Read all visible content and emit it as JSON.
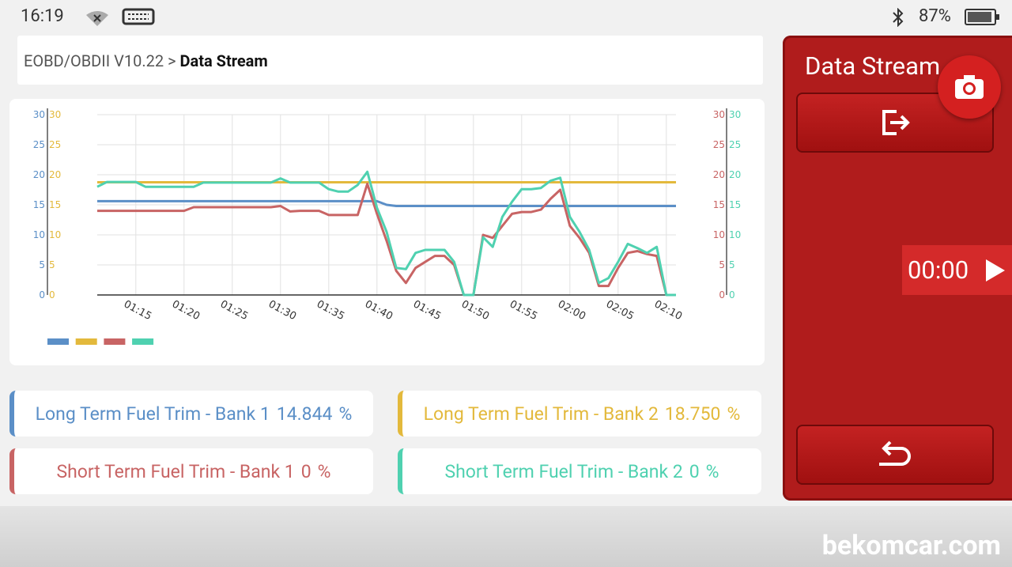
{
  "status_bar": {
    "time": "16:19",
    "battery": "87%"
  },
  "breadcrumb": {
    "path": "EOBD/OBDII V10.22 >",
    "current": "Data Stream"
  },
  "chart_data": {
    "type": "line",
    "x": [
      71,
      72,
      73,
      74,
      75,
      76,
      77,
      78,
      79,
      80,
      81,
      82,
      83,
      84,
      85,
      86,
      87,
      88,
      89,
      90,
      91,
      92,
      93,
      94,
      95,
      96,
      97,
      98,
      99,
      100,
      101,
      102,
      103,
      104,
      105,
      106,
      107,
      108,
      109,
      110,
      111,
      112,
      113,
      114,
      115,
      116,
      117,
      118,
      119,
      120,
      121,
      122,
      123,
      124,
      125,
      126,
      127,
      128,
      129,
      130,
      131
    ],
    "xlim": [
      71,
      131
    ],
    "xticks": [
      {
        "value": 75,
        "label": "01:15"
      },
      {
        "value": 80,
        "label": "01:20"
      },
      {
        "value": 85,
        "label": "01:25"
      },
      {
        "value": 90,
        "label": "01:30"
      },
      {
        "value": 95,
        "label": "01:35"
      },
      {
        "value": 100,
        "label": "01:40"
      },
      {
        "value": 105,
        "label": "01:45"
      },
      {
        "value": 110,
        "label": "01:50"
      },
      {
        "value": 115,
        "label": "01:55"
      },
      {
        "value": 120,
        "label": "02:00"
      },
      {
        "value": 125,
        "label": "02:05"
      },
      {
        "value": 130,
        "label": "02:10"
      }
    ],
    "ylim": [
      0,
      30
    ],
    "yticks": [
      0,
      5,
      10,
      15,
      20,
      25,
      30
    ],
    "grid": true,
    "series": [
      {
        "color": "#5b8fc7",
        "values": [
          15.6,
          15.6,
          15.6,
          15.6,
          15.6,
          15.6,
          15.6,
          15.6,
          15.6,
          15.6,
          15.6,
          15.6,
          15.6,
          15.6,
          15.6,
          15.6,
          15.6,
          15.6,
          15.6,
          15.6,
          15.6,
          15.6,
          15.6,
          15.6,
          15.6,
          15.6,
          15.6,
          15.6,
          15.6,
          15.6,
          15.0,
          14.8,
          14.8,
          14.8,
          14.8,
          14.8,
          14.8,
          14.8,
          14.8,
          14.8,
          14.8,
          14.8,
          14.8,
          14.8,
          14.8,
          14.8,
          14.8,
          14.8,
          14.8,
          14.8,
          14.8,
          14.8,
          14.8,
          14.8,
          14.8,
          14.8,
          14.8,
          14.8,
          14.8,
          14.8,
          14.8
        ]
      },
      {
        "color": "#e3b93c",
        "values": [
          18.75,
          18.75,
          18.75,
          18.75,
          18.75,
          18.75,
          18.75,
          18.75,
          18.75,
          18.75,
          18.75,
          18.75,
          18.75,
          18.75,
          18.75,
          18.75,
          18.75,
          18.75,
          18.75,
          18.75,
          18.75,
          18.75,
          18.75,
          18.75,
          18.75,
          18.75,
          18.75,
          18.75,
          18.75,
          18.75,
          18.75,
          18.75,
          18.75,
          18.75,
          18.75,
          18.75,
          18.75,
          18.75,
          18.75,
          18.75,
          18.75,
          18.75,
          18.75,
          18.75,
          18.75,
          18.75,
          18.75,
          18.75,
          18.75,
          18.75,
          18.75,
          18.75,
          18.75,
          18.75,
          18.75,
          18.75,
          18.75,
          18.75,
          18.75,
          18.75,
          18.75
        ]
      },
      {
        "color": "#c86464",
        "values": [
          14.0,
          14.0,
          14.0,
          14.0,
          14.0,
          14.0,
          14.0,
          14.0,
          14.0,
          14.0,
          14.6,
          14.6,
          14.6,
          14.6,
          14.6,
          14.6,
          14.6,
          14.6,
          14.6,
          14.8,
          13.9,
          14.0,
          14.0,
          14.0,
          13.3,
          13.3,
          13.3,
          13.3,
          18.5,
          13.5,
          9.0,
          4.0,
          2.0,
          4.5,
          5.5,
          6.5,
          6.5,
          5.0,
          0,
          0,
          10.0,
          9.5,
          11.5,
          13.5,
          13.8,
          13.8,
          14.2,
          16.0,
          17.5,
          11.5,
          9.5,
          7.0,
          1.5,
          1.5,
          4.5,
          7.0,
          7.3,
          6.8,
          6.5,
          0,
          0
        ]
      },
      {
        "color": "#4fd1b0",
        "values": [
          18.0,
          18.8,
          18.8,
          18.8,
          18.8,
          18.0,
          18.0,
          18.0,
          18.0,
          18.0,
          18.0,
          18.7,
          18.7,
          18.7,
          18.7,
          18.7,
          18.7,
          18.7,
          18.7,
          19.4,
          18.7,
          18.7,
          18.7,
          18.7,
          17.6,
          17.2,
          17.2,
          18.3,
          20.5,
          14.5,
          10.5,
          4.5,
          4.3,
          7.0,
          7.5,
          7.5,
          7.5,
          5.5,
          0,
          0,
          9.6,
          8.0,
          13.0,
          15.5,
          17.6,
          17.6,
          17.8,
          19.0,
          19.5,
          13.0,
          10.5,
          7.5,
          2.0,
          2.8,
          5.5,
          8.5,
          7.8,
          7.0,
          8.0,
          0,
          0
        ]
      }
    ]
  },
  "readings": [
    {
      "label": "Long Term Fuel Trim - Bank 1",
      "value": "14.844",
      "unit": "%",
      "color": "#5b8fc7"
    },
    {
      "label": "Long Term Fuel Trim - Bank 2",
      "value": "18.750",
      "unit": "%",
      "color": "#e3b93c"
    },
    {
      "label": "Short Term Fuel Trim - Bank 1",
      "value": "0",
      "unit": "%",
      "color": "#c86464"
    },
    {
      "label": "Short Term Fuel Trim - Bank 2",
      "value": "0",
      "unit": "%",
      "color": "#4fd1b0"
    }
  ],
  "sidebar": {
    "title": "Data Stream",
    "timer": "00:00"
  },
  "watermark": "bekomcar.com"
}
